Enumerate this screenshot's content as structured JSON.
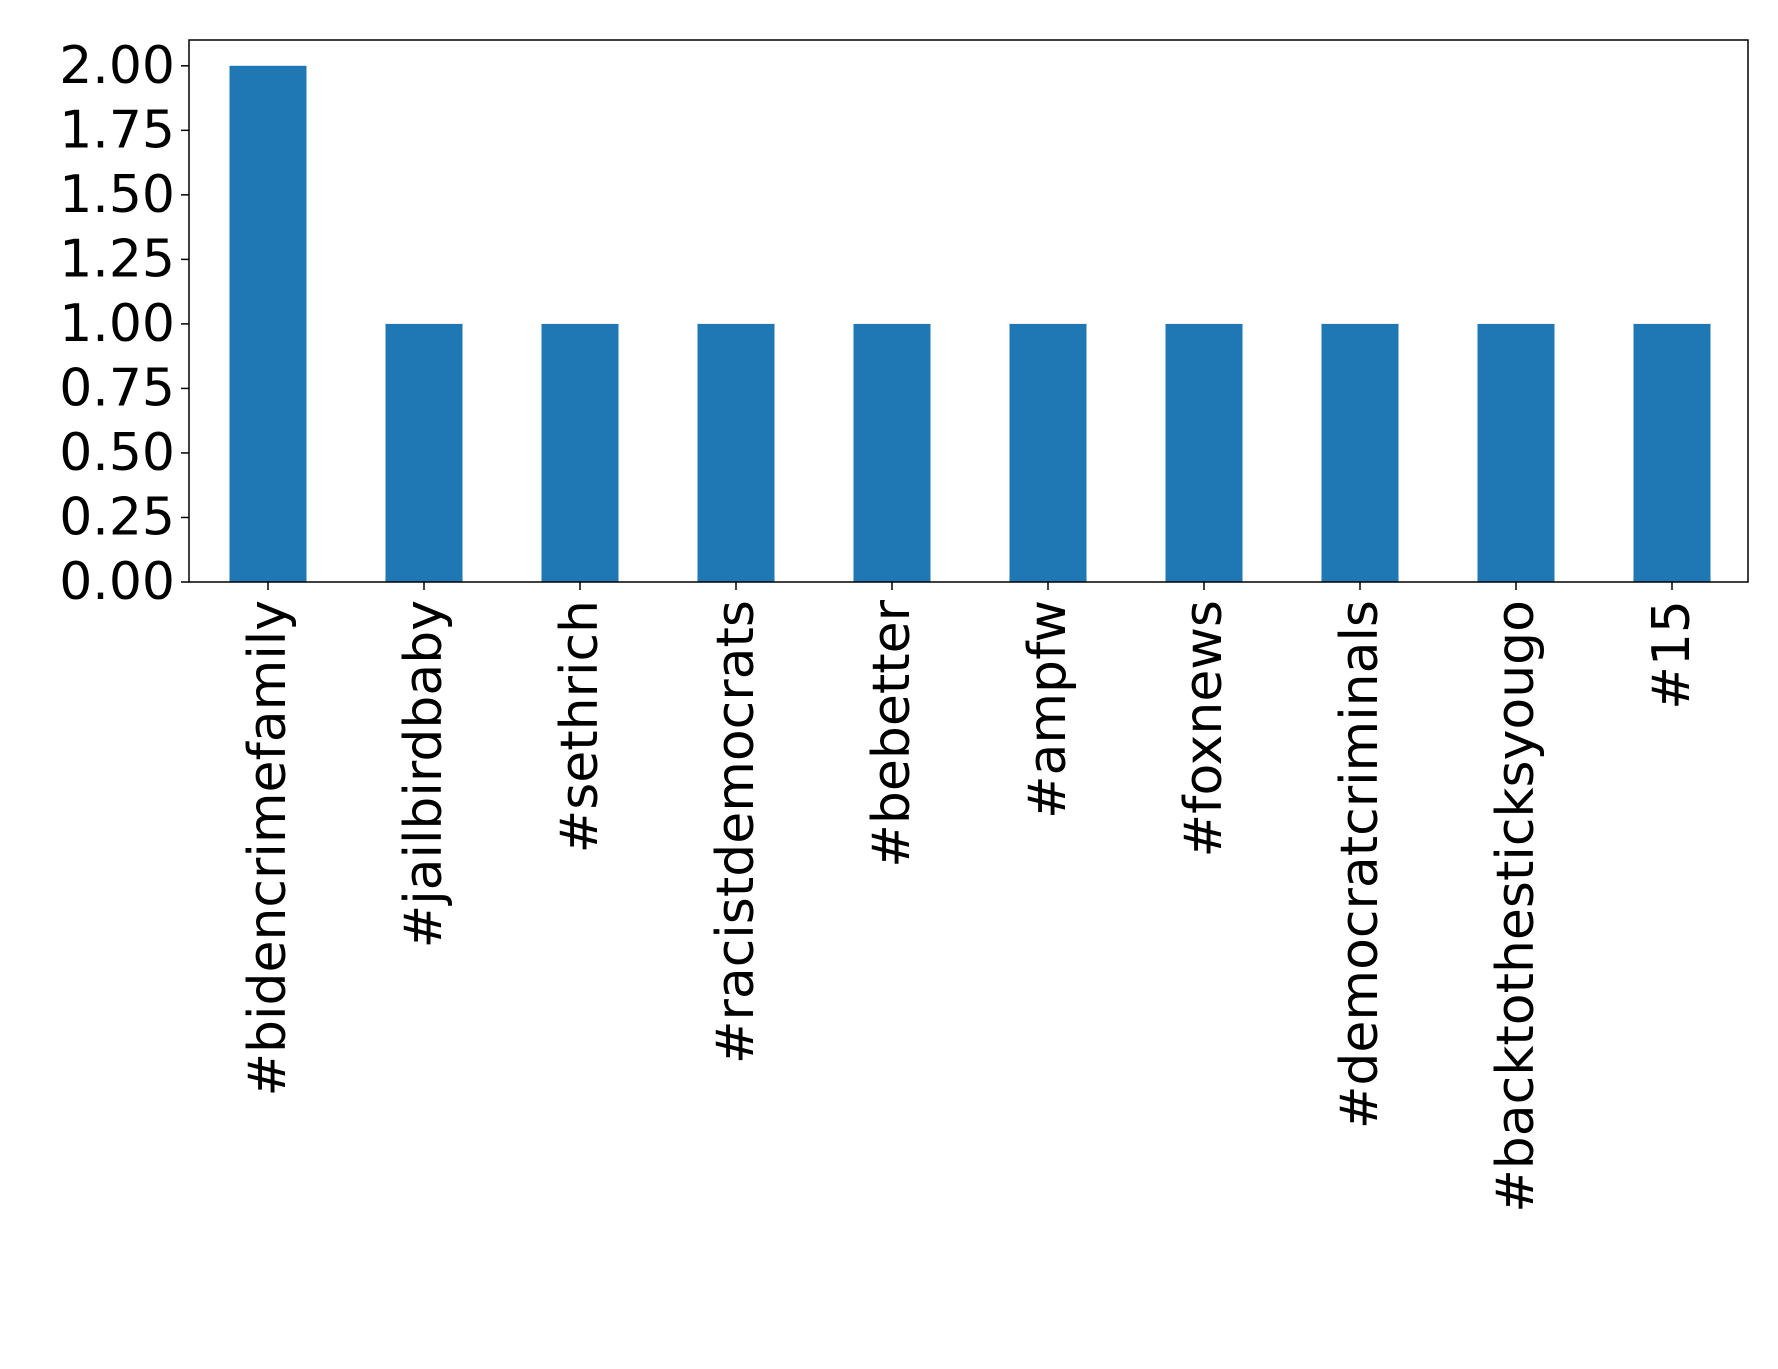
{
  "chart_data": {
    "type": "bar",
    "categories": [
      "#bidencrimefamily",
      "#jailbirdbaby",
      "#sethrich",
      "#racistdemocrats",
      "#bebetter",
      "#ampfw",
      "#foxnews",
      "#democratcriminals",
      "#backtothesticksyougo",
      "#15"
    ],
    "values": [
      2,
      1,
      1,
      1,
      1,
      1,
      1,
      1,
      1,
      1
    ],
    "ylim": [
      0,
      2.1
    ],
    "yticks": [
      "0.00",
      "0.25",
      "0.50",
      "0.75",
      "1.00",
      "1.25",
      "1.50",
      "1.75",
      "2.00"
    ],
    "title": "",
    "xlabel": "",
    "ylabel": "",
    "grid": false,
    "legend": "none",
    "bar_color": "#1f77b4",
    "x_label_rotation": "vertical"
  }
}
